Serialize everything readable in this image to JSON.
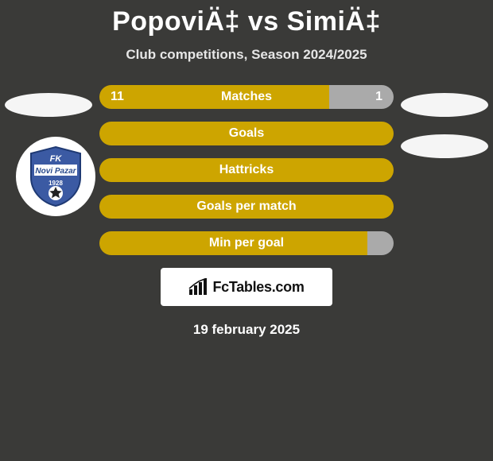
{
  "header": {
    "title": "PopoviÄ‡ vs SimiÄ‡",
    "subtitle": "Club competitions, Season 2024/2025"
  },
  "colors": {
    "background": "#3a3a38",
    "bar_left": "#cda500",
    "bar_right": "#aaaaaa",
    "pill": "#f5f5f5",
    "text_white": "#ffffff",
    "badge_blue": "#3b5aa3",
    "badge_bg": "#ffffff"
  },
  "pills": {
    "left": [
      true,
      false
    ],
    "right": [
      true,
      true
    ]
  },
  "club_badge": {
    "line1": "FK",
    "line2": "Novi Pazar",
    "line3": "1928"
  },
  "bars": [
    {
      "label": "Matches",
      "left_value": "11",
      "right_value": "1",
      "left_pct": 78
    },
    {
      "label": "Goals",
      "left_value": "",
      "right_value": "",
      "left_pct": 100
    },
    {
      "label": "Hattricks",
      "left_value": "",
      "right_value": "",
      "left_pct": 100
    },
    {
      "label": "Goals per match",
      "left_value": "",
      "right_value": "",
      "left_pct": 100
    },
    {
      "label": "Min per goal",
      "left_value": "",
      "right_value": "",
      "left_pct": 91
    }
  ],
  "brand": {
    "text": "FcTables.com"
  },
  "footer": {
    "date": "19 february 2025"
  }
}
